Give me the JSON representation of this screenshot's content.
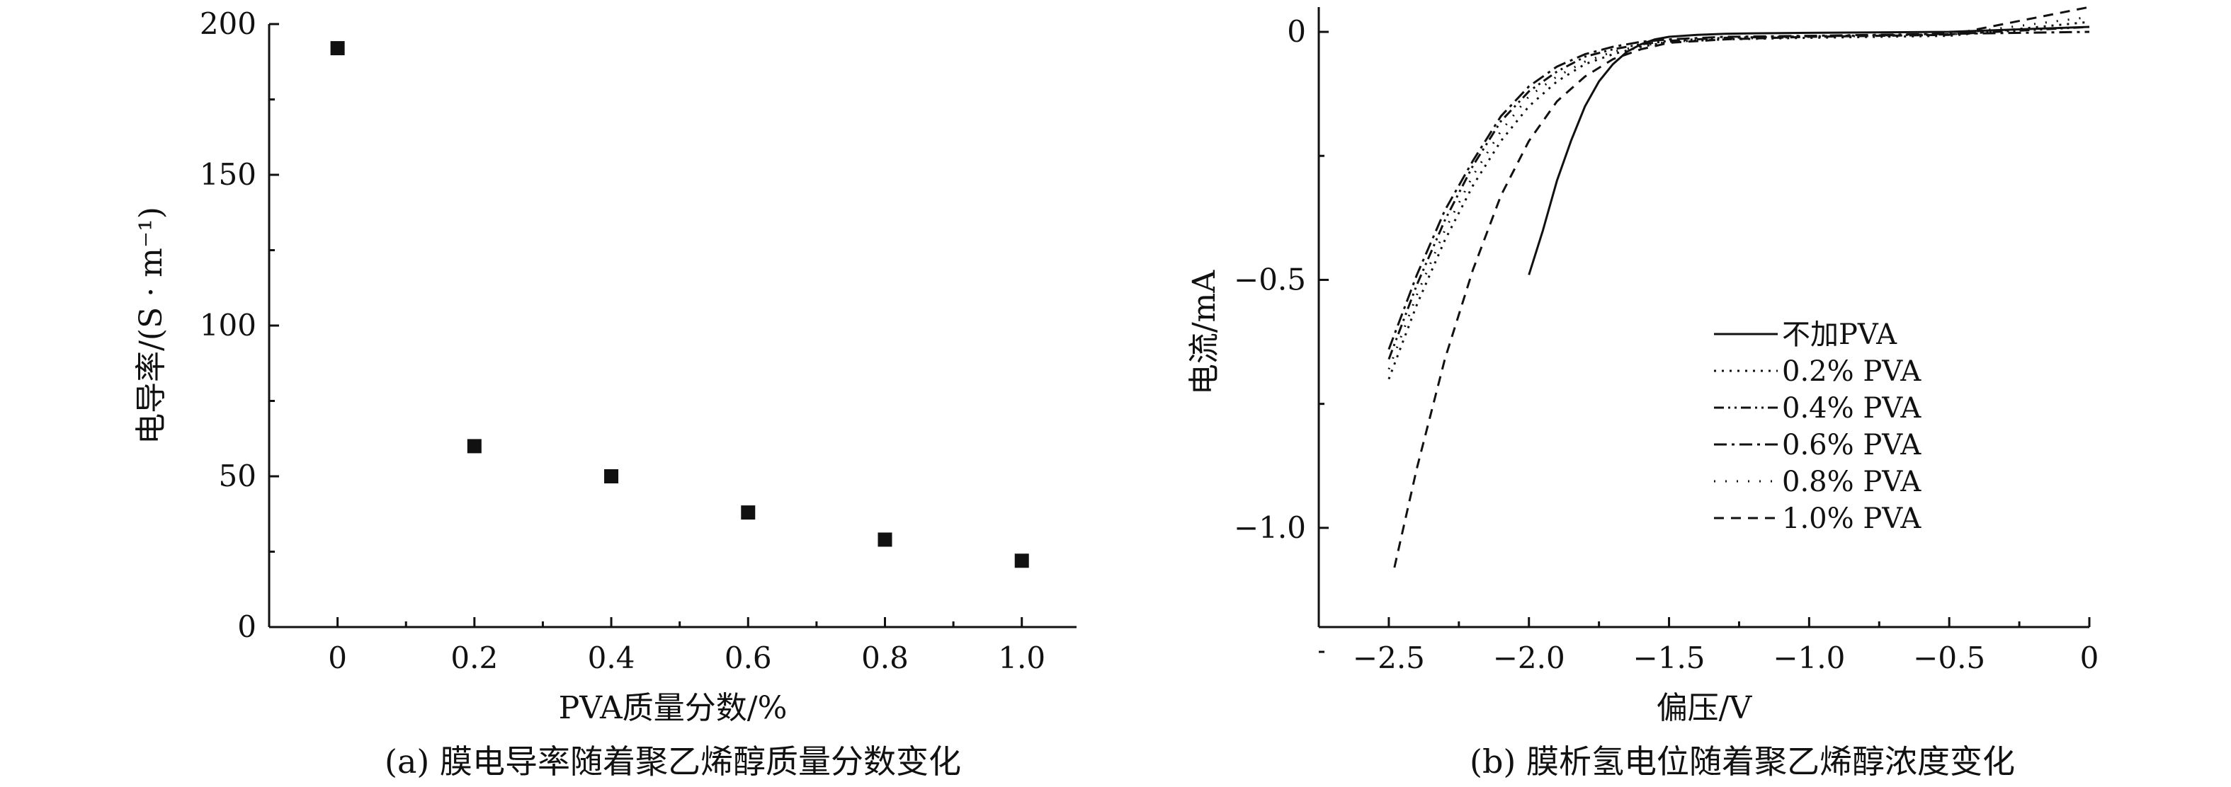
{
  "colors": {
    "ink": "#111111",
    "background": "#ffffff"
  },
  "chart_data": [
    {
      "type": "scatter",
      "caption": "(a) 膜电导率随着聚乙烯醇质量分数变化",
      "xlabel": "PVA质量分数/%",
      "ylabel": "电导率/(S · m⁻¹)",
      "xlim": [
        -0.1,
        1.08
      ],
      "ylim": [
        0,
        200
      ],
      "x_ticks": [
        0,
        0.2,
        0.4,
        0.6,
        0.8,
        1.0
      ],
      "x_tick_labels": [
        "0",
        "0.2",
        "0.4",
        "0.6",
        "0.8",
        "1.0"
      ],
      "y_ticks": [
        0,
        50,
        100,
        150,
        200
      ],
      "y_tick_labels": [
        "0",
        "50",
        "100",
        "150",
        "200"
      ],
      "grid": false,
      "marker": "square",
      "points": [
        {
          "x": 0,
          "y": 192
        },
        {
          "x": 0.2,
          "y": 60
        },
        {
          "x": 0.4,
          "y": 50
        },
        {
          "x": 0.6,
          "y": 38
        },
        {
          "x": 0.8,
          "y": 29
        },
        {
          "x": 1.0,
          "y": 22
        }
      ]
    },
    {
      "type": "line",
      "caption": "(b) 膜析氢电位随着聚乙烯醇浓度变化",
      "xlabel": "偏压/V",
      "ylabel": "电流/mA",
      "xlim": [
        -2.75,
        0
      ],
      "ylim": [
        -1.2,
        0.05
      ],
      "x_ticks": [
        -2.5,
        -2.0,
        -1.5,
        -1.0,
        -0.5,
        0
      ],
      "x_tick_labels": [
        "−2.5",
        "−2.0",
        "−1.5",
        "−1.0",
        "−0.5",
        "0"
      ],
      "y_ticks": [
        0,
        -0.5,
        -1.0
      ],
      "y_tick_labels": [
        "0",
        "−0.5",
        "−1.0"
      ],
      "grid": false,
      "legend_position": "center-right",
      "series": [
        {
          "name": "不加PVA",
          "dash": "solid",
          "x": [
            -2.0,
            -1.95,
            -1.9,
            -1.85,
            -1.8,
            -1.75,
            -1.7,
            -1.65,
            -1.6,
            -1.55,
            -1.5,
            -1.4,
            -1.3,
            -1.2,
            -1.0,
            -0.5,
            0
          ],
          "y": [
            -0.49,
            -0.4,
            -0.3,
            -0.22,
            -0.15,
            -0.1,
            -0.065,
            -0.04,
            -0.025,
            -0.015,
            -0.01,
            -0.006,
            -0.004,
            -0.003,
            -0.002,
            0.0,
            0.01
          ]
        },
        {
          "name": "0.2% PVA",
          "dash": "dotted",
          "x": [
            -2.5,
            -2.4,
            -2.3,
            -2.2,
            -2.1,
            -2.0,
            -1.9,
            -1.8,
            -1.7,
            -1.6,
            -1.5,
            -1.3,
            -1.0,
            -0.5,
            0
          ],
          "y": [
            -0.7,
            -0.55,
            -0.42,
            -0.31,
            -0.22,
            -0.15,
            -0.1,
            -0.065,
            -0.045,
            -0.03,
            -0.02,
            -0.015,
            -0.012,
            -0.008,
            0.02
          ]
        },
        {
          "name": "0.4% PVA",
          "dash": "dash-dot-dot",
          "x": [
            -2.5,
            -2.4,
            -2.3,
            -2.2,
            -2.1,
            -2.0,
            -1.9,
            -1.8,
            -1.7,
            -1.6,
            -1.5,
            -1.3,
            -1.0,
            -0.5,
            0
          ],
          "y": [
            -0.66,
            -0.51,
            -0.38,
            -0.27,
            -0.18,
            -0.12,
            -0.08,
            -0.05,
            -0.035,
            -0.025,
            -0.018,
            -0.012,
            -0.009,
            -0.005,
            0.01
          ]
        },
        {
          "name": "0.6% PVA",
          "dash": "dash-dot",
          "x": [
            -2.5,
            -2.4,
            -2.3,
            -2.2,
            -2.1,
            -2.0,
            -1.9,
            -1.8,
            -1.7,
            -1.6,
            -1.5,
            -1.3,
            -1.0,
            -0.5,
            0
          ],
          "y": [
            -0.64,
            -0.49,
            -0.36,
            -0.26,
            -0.17,
            -0.11,
            -0.07,
            -0.045,
            -0.03,
            -0.02,
            -0.015,
            -0.01,
            -0.008,
            -0.004,
            0.0
          ]
        },
        {
          "name": "0.8% PVA",
          "dash": "sparse-dotted",
          "x": [
            -2.5,
            -2.4,
            -2.3,
            -2.2,
            -2.1,
            -2.0,
            -1.9,
            -1.8,
            -1.7,
            -1.6,
            -1.5,
            -1.3,
            -1.0,
            -0.5,
            0
          ],
          "y": [
            -0.68,
            -0.53,
            -0.4,
            -0.29,
            -0.2,
            -0.13,
            -0.09,
            -0.06,
            -0.04,
            -0.028,
            -0.02,
            -0.014,
            -0.01,
            -0.006,
            0.03
          ]
        },
        {
          "name": "1.0% PVA",
          "dash": "dashed",
          "x": [
            -2.48,
            -2.4,
            -2.3,
            -2.2,
            -2.1,
            -2.0,
            -1.9,
            -1.8,
            -1.7,
            -1.6,
            -1.5,
            -1.3,
            -1.0,
            -0.5,
            0
          ],
          "y": [
            -1.08,
            -0.88,
            -0.66,
            -0.48,
            -0.33,
            -0.22,
            -0.14,
            -0.09,
            -0.055,
            -0.035,
            -0.022,
            -0.015,
            -0.01,
            -0.006,
            0.05
          ]
        }
      ]
    }
  ]
}
